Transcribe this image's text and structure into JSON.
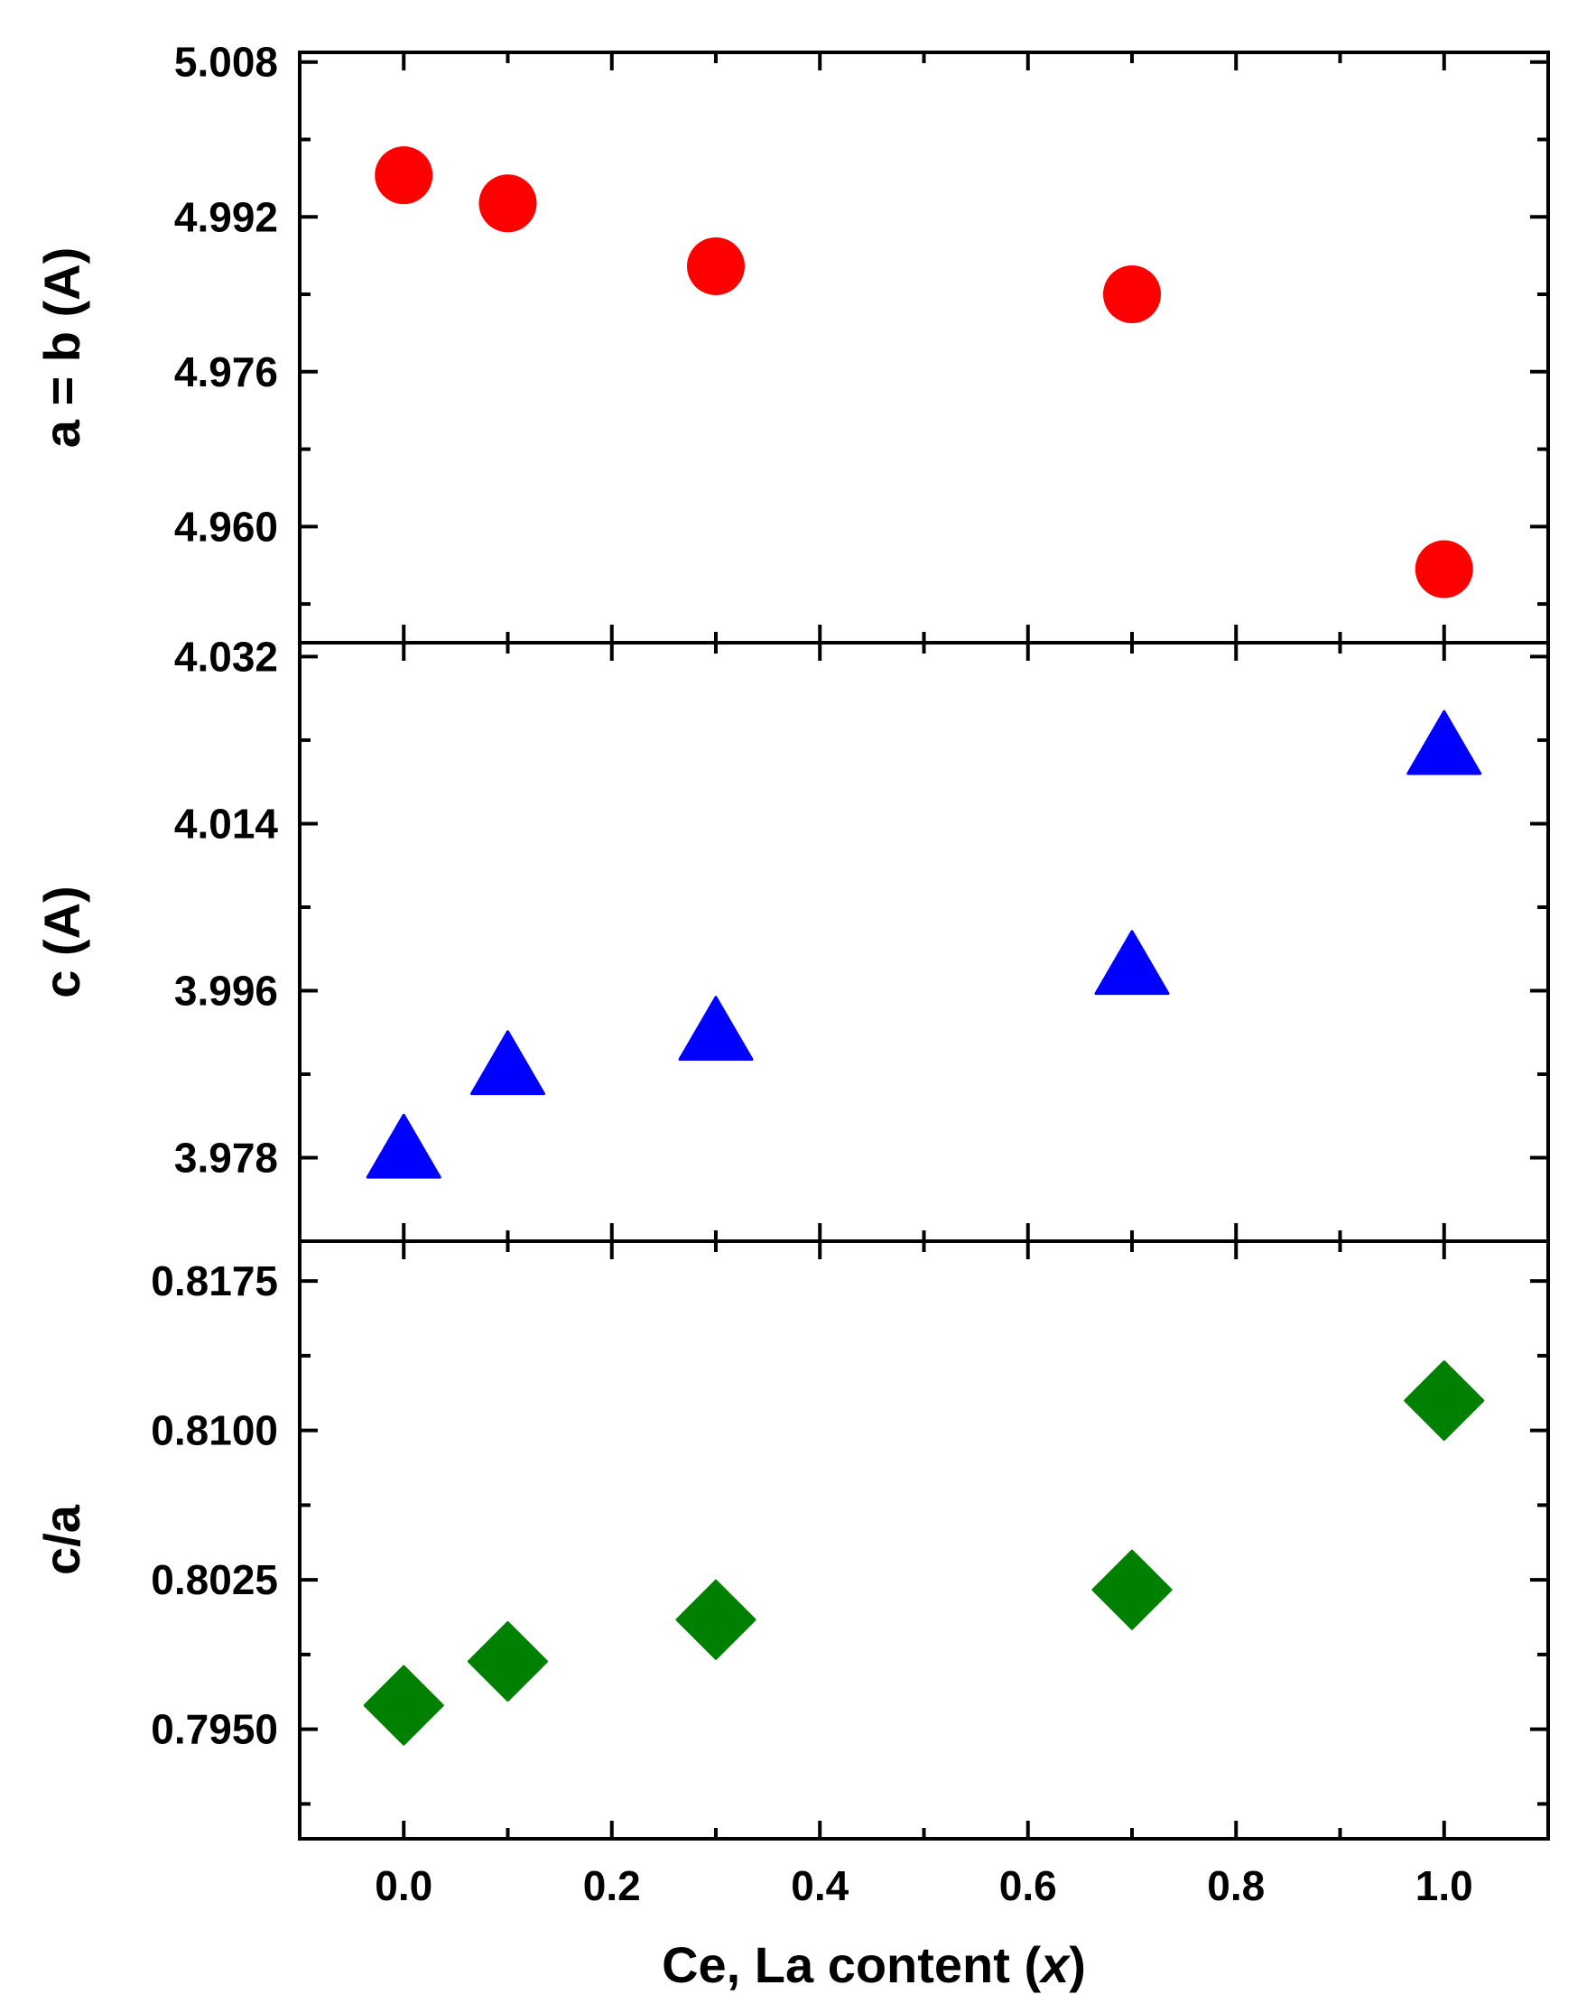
{
  "chart_data": [
    {
      "type": "scatter",
      "ylabel": "a = b (A)",
      "ylim": [
        4.948,
        5.009
      ],
      "yticks": [
        "5.008",
        "4.992",
        "4.976",
        "4.960"
      ],
      "ytick_values": [
        5.008,
        4.992,
        4.976,
        4.96
      ],
      "marker": "circle",
      "color": "#ff0000",
      "points": [
        {
          "x": 0.0,
          "y": 4.9963
        },
        {
          "x": 0.1,
          "y": 4.9934
        },
        {
          "x": 0.3,
          "y": 4.9869
        },
        {
          "x": 0.7,
          "y": 4.984
        },
        {
          "x": 1.0,
          "y": 4.9556
        }
      ]
    },
    {
      "type": "scatter",
      "ylabel": "c (A)",
      "ylim": [
        3.969,
        4.0335
      ],
      "yticks": [
        "4.032",
        "4.014",
        "3.996",
        "3.978"
      ],
      "ytick_values": [
        4.032,
        4.014,
        3.996,
        3.978
      ],
      "marker": "triangle",
      "color": "#0000ff",
      "points": [
        {
          "x": 0.0,
          "y": 3.9787
        },
        {
          "x": 0.1,
          "y": 3.9877
        },
        {
          "x": 0.3,
          "y": 3.9914
        },
        {
          "x": 0.7,
          "y": 3.9985
        },
        {
          "x": 1.0,
          "y": 4.0222
        }
      ]
    },
    {
      "type": "scatter",
      "xlabel": "Ce, La content (x)",
      "xlabel_parts": [
        "Ce, La content (",
        "x",
        ")"
      ],
      "ylabel": "c/a",
      "ylim": [
        0.7895,
        0.8195
      ],
      "xlim": [
        -0.1,
        1.1
      ],
      "xticks": [
        "0.0",
        "0.2",
        "0.4",
        "0.6",
        "0.8",
        "1.0"
      ],
      "xtick_values": [
        0.0,
        0.2,
        0.4,
        0.6,
        0.8,
        1.0
      ],
      "yticks": [
        "0.8175",
        "0.8100",
        "0.8025",
        "0.7950"
      ],
      "ytick_values": [
        0.8175,
        0.81,
        0.8025,
        0.795
      ],
      "marker": "diamond",
      "color": "#008000",
      "points": [
        {
          "x": 0.0,
          "y": 0.7962
        },
        {
          "x": 0.1,
          "y": 0.7984
        },
        {
          "x": 0.3,
          "y": 0.8005
        },
        {
          "x": 0.7,
          "y": 0.802
        },
        {
          "x": 1.0,
          "y": 0.8115
        }
      ]
    }
  ]
}
